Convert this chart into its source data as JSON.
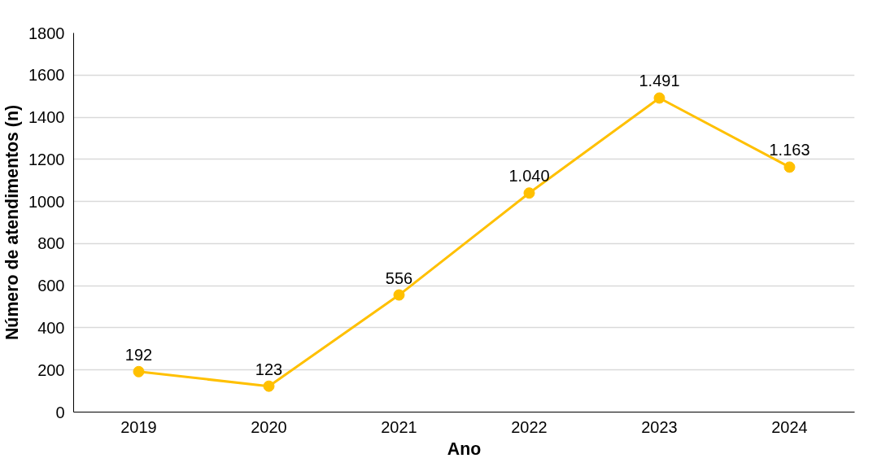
{
  "chart_data": {
    "type": "line",
    "xlabel": "Ano",
    "ylabel": "Número de atendimentos (n)",
    "categories": [
      "2019",
      "2020",
      "2021",
      "2022",
      "2023",
      "2024"
    ],
    "series": [
      {
        "color": "#ffc000",
        "values": [
          192,
          123,
          556,
          1040,
          1491,
          1163
        ],
        "value_labels": [
          "192",
          "123",
          "556",
          "1.040",
          "1.491",
          "1.163"
        ]
      }
    ],
    "ylim": [
      0,
      1800
    ],
    "yticks": [
      0,
      200,
      400,
      600,
      800,
      1000,
      1200,
      1400,
      1600,
      1800
    ],
    "grid": "y",
    "marker": "circle",
    "line_style": "solid"
  }
}
